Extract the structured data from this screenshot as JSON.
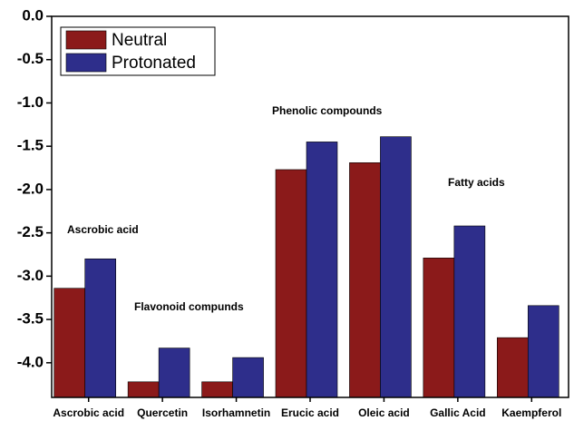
{
  "chart_data": {
    "type": "bar",
    "categories": [
      "Ascrobic acid",
      "Quercetin",
      "Isorhamnetin",
      "Erucic acid",
      "Oleic acid",
      "Gallic Acid",
      "Kaempferol"
    ],
    "series": [
      {
        "name": "Neutral",
        "color": "#8b1a1a",
        "values": [
          -3.14,
          -4.22,
          -4.22,
          -1.77,
          -1.69,
          -2.79,
          -3.71
        ]
      },
      {
        "name": "Protonated",
        "color": "#2e2e8b",
        "values": [
          -2.8,
          -3.83,
          -3.94,
          -1.45,
          -1.39,
          -2.42,
          -3.34
        ]
      }
    ],
    "ylim": [
      -4.4,
      0
    ],
    "yticks": [
      {
        "value": 0,
        "label": "0.0"
      },
      -0.5,
      {
        "value": -1,
        "label": "-1.0"
      },
      -1.5,
      {
        "value": -2,
        "label": "-2.0"
      },
      -2.5,
      {
        "value": -3,
        "label": "-3.0"
      },
      -3.5,
      {
        "value": -4,
        "label": "-4.0"
      }
    ],
    "annotations": [
      "Ascrobic acid",
      "Flavonoid compunds",
      "Phenolic compounds",
      "Fatty acids"
    ],
    "legend": "upper left"
  }
}
